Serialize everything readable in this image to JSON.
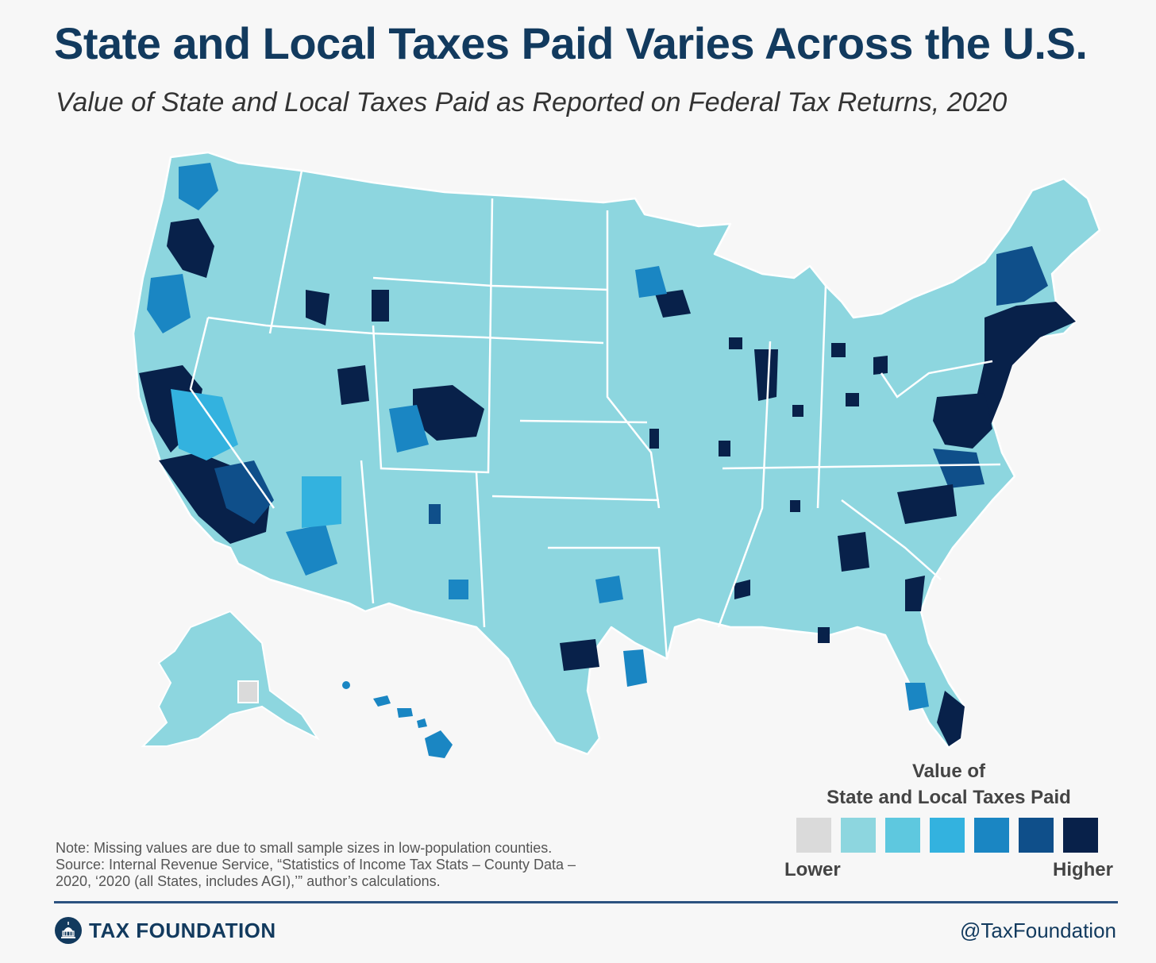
{
  "header": {
    "title": "State and Local Taxes Paid Varies Across the U.S.",
    "subtitle": "Value of State and Local Taxes Paid as Reported on Federal Tax Returns, 2020"
  },
  "colors": {
    "background": "#f7f7f7",
    "missing": "#dadada",
    "scale": [
      "#dadada",
      "#8dd6df",
      "#5ec8df",
      "#33b2df",
      "#1a86c3",
      "#0f4f8a",
      "#08214a"
    ],
    "border": "#ffffff",
    "brand": "#123a5e"
  },
  "legend": {
    "title_line1": "Value of",
    "title_line2": "State and Local Taxes Paid",
    "low_label": "Lower",
    "high_label": "Higher"
  },
  "notes": {
    "note": "Note: Missing values are due to small sample sizes in low-population counties.",
    "source_line1": "Source: Internal Revenue Service, “Statistics of Income Tax Stats – County Data –",
    "source_line2": "2020, ‘2020 (all States, includes AGI),’” author’s calculations."
  },
  "footer": {
    "brand": "TAX FOUNDATION",
    "handle": "@TaxFoundation",
    "logo_icon": "capitol-dome-icon"
  }
}
